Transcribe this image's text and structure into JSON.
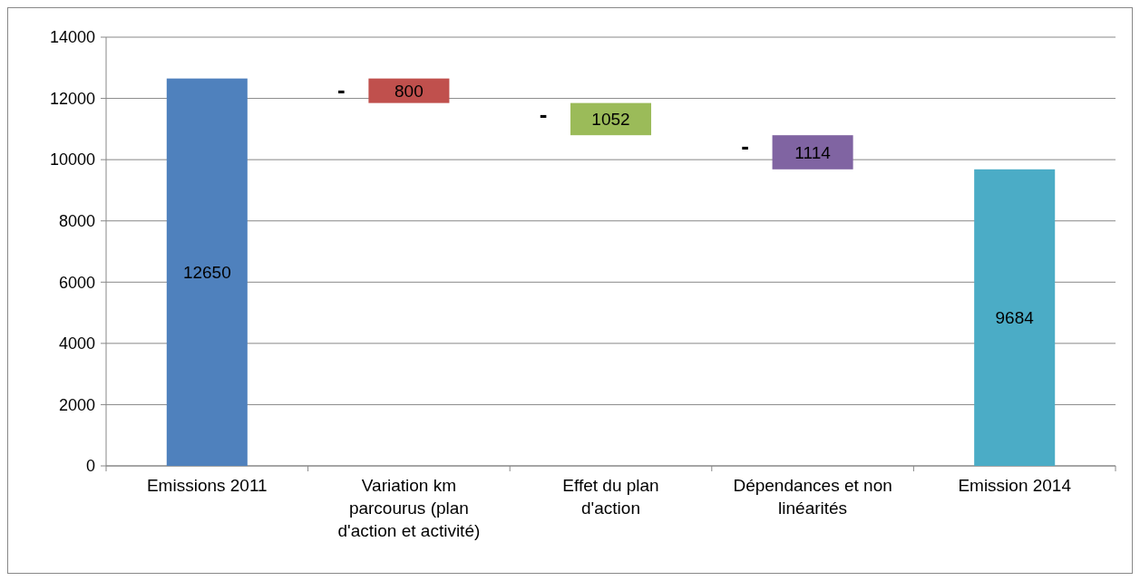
{
  "chart_data": {
    "type": "bar",
    "categories": [
      "Emissions 2011",
      "Variation km parcourus (plan d'action et activité)",
      "Effet du plan d'action",
      "Dépendances et non linéarités",
      "Emission 2014"
    ],
    "values": [
      12650,
      800,
      1052,
      1114,
      9684
    ],
    "base": [
      0,
      11850,
      10798,
      9684,
      0
    ],
    "colors": [
      "#4f81bd",
      "#c0504d",
      "#9bbb59",
      "#8064a2",
      "#4bacc6"
    ],
    "data_labels": true,
    "annotations": [
      "-",
      "-",
      "-"
    ],
    "ylim": [
      0,
      14000
    ],
    "yticks": [
      0,
      2000,
      4000,
      6000,
      8000,
      10000,
      12000,
      14000
    ],
    "grid": "y"
  }
}
